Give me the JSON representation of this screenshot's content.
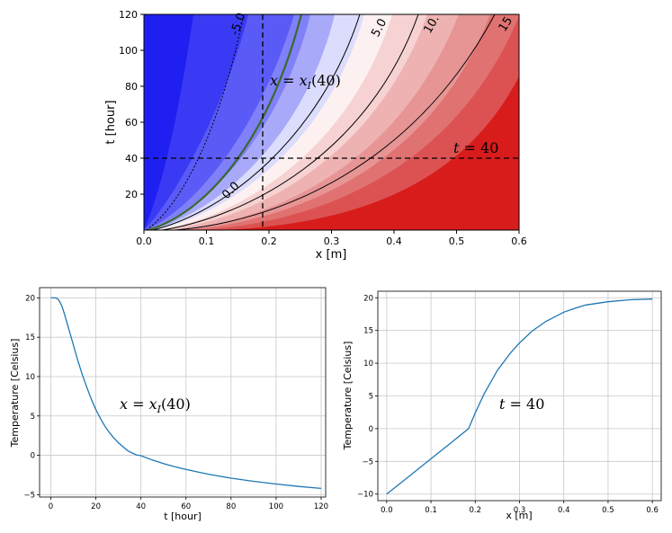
{
  "chart_data": [
    {
      "type": "heatmap",
      "title": "",
      "xlabel": "x [m]",
      "ylabel": "t [hour]",
      "xlim": [
        0.0,
        0.6
      ],
      "ylim": [
        0,
        120
      ],
      "xticks": [
        "0.0",
        "0.1",
        "0.2",
        "0.3",
        "0.4",
        "0.5",
        "0.6"
      ],
      "yticks": [
        "20",
        "40",
        "60",
        "80",
        "100",
        "120"
      ],
      "colormap": "bwr",
      "contour_levels": [
        -10,
        -7.5,
        -5,
        -2.5,
        0,
        2.5,
        5,
        7.5,
        10,
        12.5,
        15,
        17.5,
        20
      ],
      "contour_lines": [
        {
          "value": -5,
          "label": "-5.0",
          "style": "dotted",
          "color": "#000000"
        },
        {
          "value": 0,
          "label": "0.0",
          "style": "solid",
          "color": "#3a6a2a"
        },
        {
          "value": 5,
          "label": "5.0",
          "style": "solid",
          "color": "#000000"
        },
        {
          "value": 10,
          "label": "10.",
          "style": "solid",
          "color": "#000000"
        },
        {
          "value": 15,
          "label": "15",
          "style": "solid",
          "color": "#000000"
        }
      ],
      "annotations": {
        "vline_label": "x = x_I(40)",
        "hline_label": "t = 40"
      },
      "vline_x": 0.19,
      "hline_t": 40,
      "grid": false
    },
    {
      "type": "line",
      "xlabel": "t [hour]",
      "ylabel": "Temperature [Celsius]",
      "xlim": [
        -5,
        122
      ],
      "ylim": [
        -5.3,
        21.3
      ],
      "xticks": [
        "0",
        "20",
        "40",
        "60",
        "80",
        "100",
        "120"
      ],
      "yticks": [
        "−5",
        "0",
        "5",
        "10",
        "15",
        "20"
      ],
      "annotation": "x = x_I(40)",
      "grid": true,
      "series": [
        {
          "x": [
            0,
            2,
            3,
            4,
            5,
            6,
            8,
            10,
            12,
            14,
            16,
            18,
            20,
            22,
            24,
            26,
            28,
            30,
            32,
            34,
            36,
            38,
            40,
            45,
            50,
            55,
            60,
            65,
            70,
            80,
            90,
            100,
            110,
            120
          ],
          "y": [
            20.0,
            20.0,
            19.9,
            19.5,
            18.9,
            18.0,
            16.0,
            14.0,
            12.0,
            10.2,
            8.6,
            7.1,
            5.8,
            4.7,
            3.7,
            2.9,
            2.2,
            1.6,
            1.1,
            0.6,
            0.3,
            0.05,
            -0.05,
            -0.6,
            -1.05,
            -1.45,
            -1.8,
            -2.1,
            -2.4,
            -2.9,
            -3.3,
            -3.65,
            -3.95,
            -4.2
          ]
        }
      ]
    },
    {
      "type": "line",
      "xlabel": "x [m]",
      "ylabel": "Temperature [Celsius]",
      "xlim": [
        -0.02,
        0.62
      ],
      "ylim": [
        -11,
        21
      ],
      "xticks": [
        "0.0",
        "0.1",
        "0.2",
        "0.3",
        "0.4",
        "0.5",
        "0.6"
      ],
      "yticks": [
        "−10",
        "−5",
        "0",
        "5",
        "10",
        "15",
        "20"
      ],
      "annotation": "t = 40",
      "grid": true,
      "series": [
        {
          "x": [
            0.0,
            0.05,
            0.1,
            0.15,
            0.185,
            0.2,
            0.22,
            0.25,
            0.28,
            0.3,
            0.33,
            0.36,
            0.4,
            0.43,
            0.45,
            0.5,
            0.55,
            0.6
          ],
          "y": [
            -10.0,
            -7.3,
            -4.6,
            -1.9,
            0.0,
            2.4,
            5.3,
            8.9,
            11.6,
            13.1,
            15.0,
            16.4,
            17.8,
            18.5,
            18.9,
            19.4,
            19.7,
            19.8
          ]
        }
      ]
    }
  ]
}
